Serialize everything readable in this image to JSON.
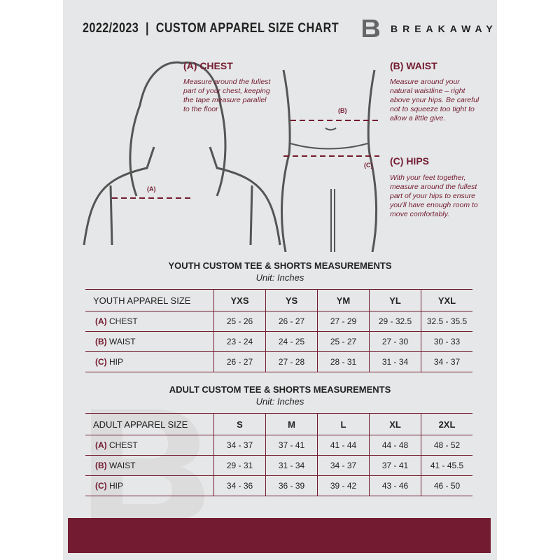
{
  "header": {
    "title": "2022/2023  |  CUSTOM APPAREL SIZE CHART",
    "brand": "BREAKAWAY"
  },
  "guide": {
    "chest": {
      "heading": "(A) CHEST",
      "text": "Measure around the fullest part of your chest, keeping the tape measure parallel to the floor",
      "marker": "(A)"
    },
    "waist": {
      "heading": "(B) WAIST",
      "text": "Measure around your natural waistline – right above your hips. Be careful not to squeeze too tight to allow a little give.",
      "marker": "(B)"
    },
    "hips": {
      "heading": "(C) HIPS",
      "text": "With your feet together, measure around the fullest part of your hips to ensure you'll have enough room to move comfortably.",
      "marker": "(C)"
    }
  },
  "youth": {
    "title": "YOUTH CUSTOM TEE & SHORTS MEASUREMENTS",
    "unit": "Unit: Inches",
    "size_label": "YOUTH APPAREL SIZE",
    "sizes": [
      "YXS",
      "YS",
      "YM",
      "YL",
      "YXL"
    ],
    "rows": [
      {
        "code": "(A)",
        "name": "CHEST",
        "values": [
          "25 - 26",
          "26 - 27",
          "27 - 29",
          "29 - 32.5",
          "32.5 - 35.5"
        ]
      },
      {
        "code": "(B)",
        "name": "WAIST",
        "values": [
          "23 - 24",
          "24 - 25",
          "25 - 27",
          "27 - 30",
          "30 - 33"
        ]
      },
      {
        "code": "(C)",
        "name": "HIP",
        "values": [
          "26 - 27",
          "27 - 28",
          "28 - 31",
          "31 - 34",
          "34 - 37"
        ]
      }
    ]
  },
  "adult": {
    "title": "ADULT CUSTOM TEE & SHORTS MEASUREMENTS",
    "unit": "Unit: Inches",
    "size_label": "ADULT APPAREL SIZE",
    "sizes": [
      "S",
      "M",
      "L",
      "XL",
      "2XL"
    ],
    "rows": [
      {
        "code": "(A)",
        "name": "CHEST",
        "values": [
          "34 - 37",
          "37 - 41",
          "41 - 44",
          "44 - 48",
          "48 - 52"
        ]
      },
      {
        "code": "(B)",
        "name": "WAIST",
        "values": [
          "29 - 31",
          "31 - 34",
          "34 - 37",
          "37 - 41",
          "41 - 45.5"
        ]
      },
      {
        "code": "(C)",
        "name": "HIP",
        "values": [
          "34 - 36",
          "36 - 39",
          "39 - 42",
          "43 - 46",
          "46 - 50"
        ]
      }
    ]
  },
  "colors": {
    "accent": "#731c31",
    "background": "#e6e7e8"
  }
}
